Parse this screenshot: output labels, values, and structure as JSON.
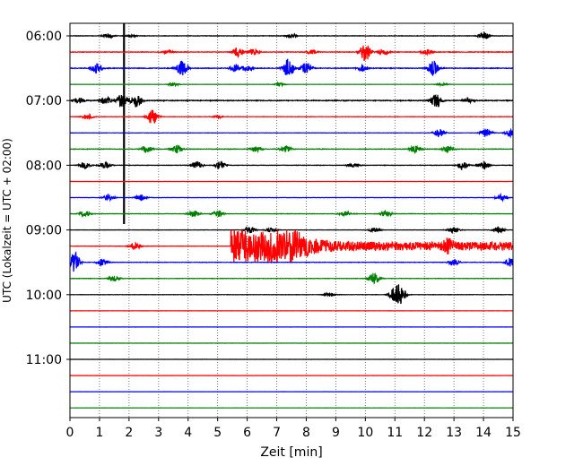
{
  "chart_data": {
    "type": "line",
    "xlabel": "Zeit  [min]",
    "ylabel": "UTC (Lokalzeit = UTC + 02:00)",
    "xlim": [
      0,
      15
    ],
    "x_ticks": [
      0,
      1,
      2,
      3,
      4,
      5,
      6,
      7,
      8,
      9,
      10,
      11,
      12,
      13,
      14,
      15
    ],
    "x_tick_labels": [
      "0",
      "1",
      "2",
      "3",
      "4",
      "5",
      "6",
      "7",
      "8",
      "9",
      "10",
      "11",
      "12",
      "13",
      "14",
      "15"
    ],
    "y_tick_labels": [
      "06:00",
      "07:00",
      "08:00",
      "09:00",
      "10:00",
      "11:00"
    ],
    "trace_interval_min": 15,
    "grid": "vertical dotted",
    "colors_cycle": [
      "#000000",
      "#ff0000",
      "#0000ff",
      "#008000"
    ],
    "traces": [
      {
        "start": "06:00",
        "color": "#000000",
        "amp": 0.25,
        "bursts": [
          [
            1.3,
            0.35
          ],
          [
            2.1,
            0.15
          ],
          [
            7.5,
            0.25
          ],
          [
            14.0,
            0.6
          ]
        ],
        "spike": {
          "x": 1.83,
          "top": 35.0,
          "bottom": 10.0
        }
      },
      {
        "start": "06:15",
        "color": "#ff0000",
        "amp": 0.3,
        "bursts": [
          [
            3.3,
            0.3
          ],
          [
            5.7,
            0.8
          ],
          [
            6.2,
            0.5
          ],
          [
            8.2,
            0.4
          ],
          [
            10.0,
            1.5
          ],
          [
            10.6,
            0.6
          ],
          [
            12.1,
            0.4
          ]
        ]
      },
      {
        "start": "06:30",
        "color": "#0000ff",
        "amp": 0.35,
        "bursts": [
          [
            0.9,
            0.8
          ],
          [
            3.8,
            1.3
          ],
          [
            5.6,
            0.6
          ],
          [
            6.0,
            0.5
          ],
          [
            7.4,
            1.5
          ],
          [
            8.0,
            0.9
          ],
          [
            9.9,
            0.6
          ],
          [
            12.3,
            1.2
          ]
        ]
      },
      {
        "start": "06:45",
        "color": "#008000",
        "amp": 0.1,
        "bursts": [
          [
            3.5,
            0.3
          ],
          [
            7.1,
            0.3
          ],
          [
            12.6,
            0.2
          ]
        ]
      },
      {
        "start": "07:00",
        "color": "#000000",
        "amp": 0.4,
        "bursts": [
          [
            0.3,
            0.4
          ],
          [
            1.2,
            0.6
          ],
          [
            1.75,
            1.1
          ],
          [
            2.25,
            1.2
          ],
          [
            12.4,
            1.1
          ],
          [
            13.5,
            0.3
          ]
        ]
      },
      {
        "start": "07:15",
        "color": "#ff0000",
        "amp": 0.15,
        "bursts": [
          [
            0.6,
            0.5
          ],
          [
            2.8,
            1.2
          ],
          [
            5.0,
            0.2
          ]
        ]
      },
      {
        "start": "07:30",
        "color": "#0000ff",
        "amp": 0.15,
        "bursts": [
          [
            12.5,
            0.7
          ],
          [
            14.1,
            0.7
          ],
          [
            14.9,
            0.6
          ]
        ]
      },
      {
        "start": "07:45",
        "color": "#008000",
        "amp": 0.25,
        "bursts": [
          [
            2.6,
            0.6
          ],
          [
            3.6,
            0.9
          ],
          [
            6.3,
            0.5
          ],
          [
            7.3,
            0.5
          ],
          [
            11.7,
            0.6
          ],
          [
            12.8,
            0.5
          ]
        ]
      },
      {
        "start": "08:00",
        "color": "#000000",
        "amp": 0.2,
        "bursts": [
          [
            0.5,
            0.6
          ],
          [
            1.2,
            0.5
          ],
          [
            4.3,
            0.6
          ],
          [
            5.1,
            0.6
          ],
          [
            9.6,
            0.4
          ],
          [
            13.3,
            0.7
          ],
          [
            14.0,
            0.7
          ]
        ]
      },
      {
        "start": "08:15",
        "color": "#ff0000",
        "amp": 0.05,
        "bursts": []
      },
      {
        "start": "08:30",
        "color": "#0000ff",
        "amp": 0.15,
        "bursts": [
          [
            1.3,
            0.6
          ],
          [
            2.4,
            0.5
          ],
          [
            14.6,
            0.5
          ]
        ]
      },
      {
        "start": "08:45",
        "color": "#008000",
        "amp": 0.2,
        "bursts": [
          [
            0.5,
            0.5
          ],
          [
            4.2,
            0.5
          ],
          [
            5.0,
            0.5
          ],
          [
            9.3,
            0.4
          ],
          [
            10.7,
            0.5
          ]
        ]
      },
      {
        "start": "09:00",
        "color": "#000000",
        "amp": 0.15,
        "bursts": [
          [
            6.1,
            0.5
          ],
          [
            6.8,
            0.4
          ],
          [
            10.3,
            0.4
          ],
          [
            13.0,
            0.5
          ],
          [
            14.5,
            0.5
          ]
        ]
      },
      {
        "start": "09:15",
        "color": "#ff0000",
        "amp": 0.2,
        "bursts": [
          [
            2.2,
            0.6
          ],
          [
            12.8,
            0.8
          ]
        ],
        "eq": {
          "start": 5.45,
          "amp": 3.0
        }
      },
      {
        "start": "09:30",
        "color": "#0000ff",
        "amp": 0.2,
        "bursts": [
          [
            0.15,
            1.7
          ],
          [
            1.1,
            0.6
          ],
          [
            13.0,
            0.6
          ],
          [
            14.9,
            0.7
          ]
        ]
      },
      {
        "start": "09:45",
        "color": "#008000",
        "amp": 0.2,
        "bursts": [
          [
            1.5,
            0.5
          ],
          [
            10.3,
            0.9
          ]
        ]
      },
      {
        "start": "10:00",
        "color": "#000000",
        "amp": 0.15,
        "bursts": [
          [
            8.8,
            0.3
          ],
          [
            11.0,
            1.1
          ],
          [
            11.2,
            1.2
          ]
        ]
      },
      {
        "start": "10:15",
        "color": "#ff0000",
        "amp": 0.05,
        "bursts": []
      },
      {
        "start": "10:30",
        "color": "#0000ff",
        "amp": 0.06,
        "bursts": []
      },
      {
        "start": "10:45",
        "color": "#008000",
        "amp": 0.06,
        "bursts": []
      },
      {
        "start": "11:00",
        "color": "#000000",
        "amp": 0.06,
        "bursts": []
      },
      {
        "start": "11:15",
        "color": "#ff0000",
        "amp": 0.06,
        "bursts": []
      },
      {
        "start": "11:30",
        "color": "#0000ff",
        "amp": 0.06,
        "bursts": []
      },
      {
        "start": "11:45",
        "color": "#008000",
        "amp": 0.06,
        "bursts": []
      }
    ]
  }
}
